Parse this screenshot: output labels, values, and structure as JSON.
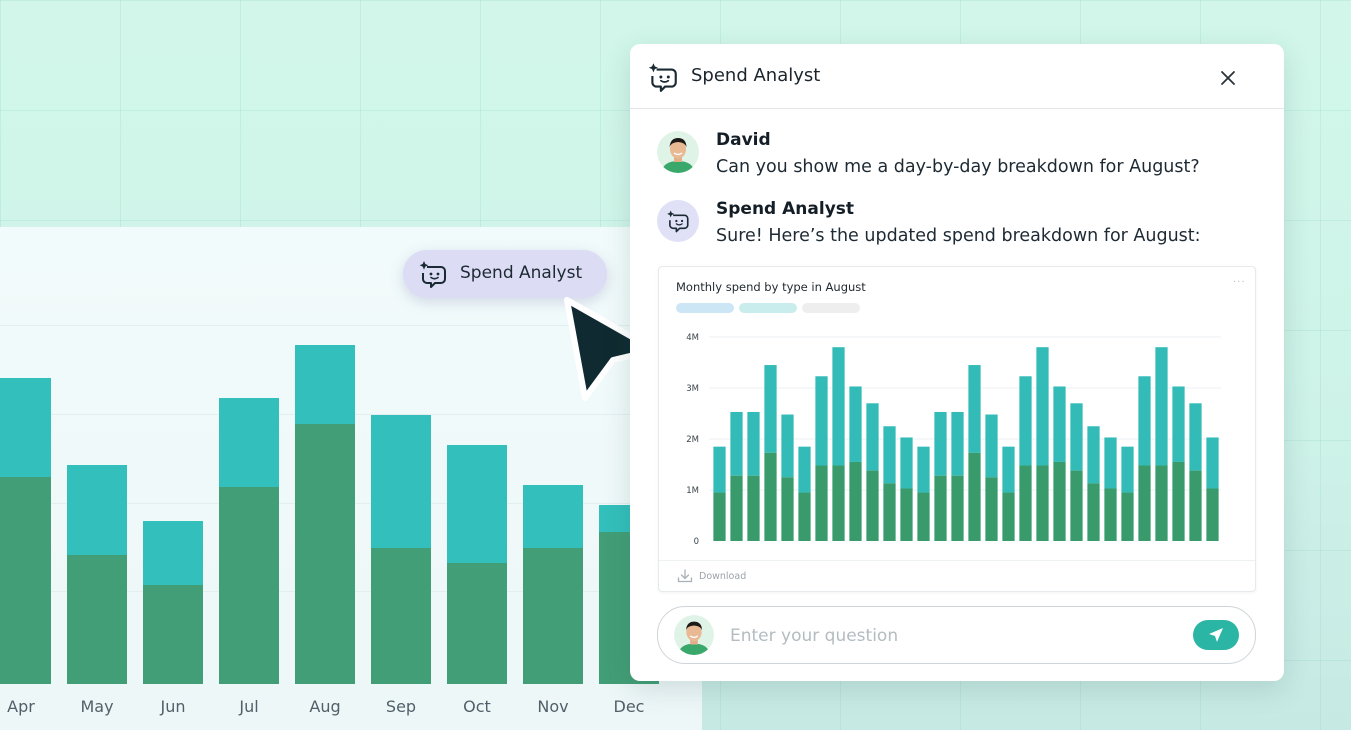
{
  "background_chart": {
    "months": [
      "Apr",
      "May",
      "Jun",
      "Jul",
      "Aug",
      "Sep",
      "Oct",
      "Nov",
      "Dec"
    ],
    "lower_values": [
      207,
      129,
      99,
      197,
      260,
      136,
      121,
      136,
      152
    ],
    "total_values": [
      306,
      219,
      163,
      286,
      339,
      269,
      239,
      199,
      179
    ],
    "colors": {
      "lower": "#429e76",
      "upper": "#33bfbb"
    }
  },
  "pill": {
    "icon": "sparkle-chat-icon",
    "label": "Spend Analyst"
  },
  "cursor": {
    "icon": "pointer-cursor-icon"
  },
  "panel": {
    "icon": "sparkle-chat-icon",
    "title": "Spend Analyst",
    "close_icon": "close-icon"
  },
  "messages": [
    {
      "author": "David",
      "avatar": "user-avatar",
      "text": "Can you show me a day-by-day breakdown for August?"
    },
    {
      "author": "Spend Analyst",
      "avatar": "sparkle-chat-icon",
      "text": "Sure! Here’s the updated spend breakdown for August:"
    }
  ],
  "chart_card": {
    "more_label": "···",
    "download_label": "Download",
    "download_icon": "download-icon",
    "legend_colors": [
      "#cde6f5",
      "#c9ecec",
      "#eeeeee"
    ]
  },
  "chart_data": {
    "type": "bar",
    "title": "Monthly spend by type in August",
    "stacked": true,
    "yticks": [
      "0",
      "1M",
      "2M",
      "3M",
      "4M"
    ],
    "ylim": [
      0,
      4
    ],
    "unit": "M",
    "series_lower": [
      0.95,
      1.28,
      1.28,
      1.73,
      1.25,
      0.95,
      1.48,
      1.48,
      1.55,
      1.38,
      1.13,
      1.03,
      0.95,
      1.28,
      1.28,
      1.73,
      1.25,
      0.95,
      1.48,
      1.48,
      1.55,
      1.38,
      1.13,
      1.03,
      0.95,
      1.48,
      1.48,
      1.55,
      1.38,
      1.03
    ],
    "series_total": [
      1.85,
      2.53,
      2.53,
      3.45,
      2.48,
      1.85,
      3.23,
      3.8,
      3.03,
      2.7,
      2.25,
      2.03,
      1.85,
      2.53,
      2.53,
      3.45,
      2.48,
      1.85,
      3.23,
      3.8,
      3.03,
      2.7,
      2.25,
      2.03,
      1.85,
      3.23,
      3.8,
      3.03,
      2.7,
      2.03
    ],
    "colors": {
      "lower": "#399b6c",
      "upper": "#33bbb7"
    },
    "grid": true
  },
  "input": {
    "placeholder": "Enter your question",
    "avatar": "user-avatar",
    "send_icon": "send-icon"
  }
}
